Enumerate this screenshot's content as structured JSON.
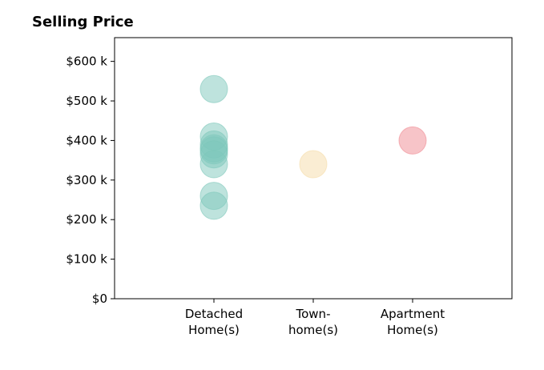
{
  "chart_data": {
    "type": "scatter",
    "title": "Selling Price",
    "xlabel": "",
    "ylabel": "",
    "categories": [
      "Detached\nHome(s)",
      "Town-\nhome(s)",
      "Apartment\nHome(s)"
    ],
    "ylim": [
      0,
      660000
    ],
    "yticks": [
      0,
      100000,
      200000,
      300000,
      400000,
      500000,
      600000
    ],
    "ytick_labels": [
      "$0",
      "$100 k",
      "$200 k",
      "$300 k",
      "$400 k",
      "$500 k",
      "$600 k"
    ],
    "grid": false,
    "series": [
      {
        "category": "Detached\nHome(s)",
        "color": "#7ec8bb",
        "values": [
          530000,
          410000,
          390000,
          380000,
          375000,
          365000,
          340000,
          260000,
          235000
        ]
      },
      {
        "category": "Town-\nhome(s)",
        "color": "#f5dca8",
        "values": [
          340000
        ]
      },
      {
        "category": "Apartment\nHome(s)",
        "color": "#f08a92",
        "values": [
          400000
        ]
      }
    ]
  }
}
